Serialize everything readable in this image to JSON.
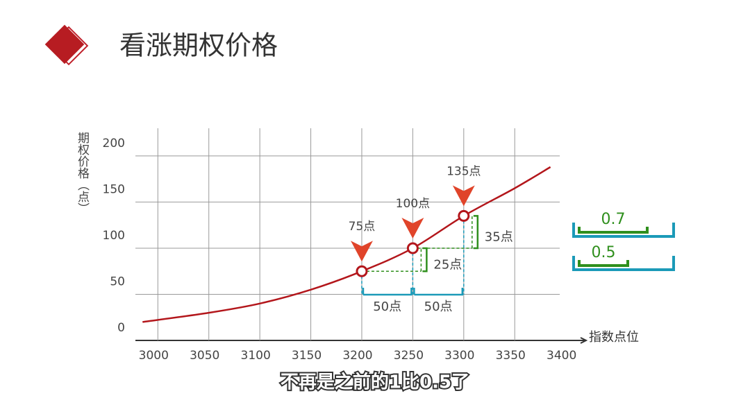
{
  "header": {
    "title": "看涨期权价格"
  },
  "caption": "不再是之前的1比0.5了",
  "chart_data": {
    "type": "line",
    "y_label": "期权价格（点）",
    "x_label": "指数点位",
    "x": [
      2985,
      3050,
      3100,
      3150,
      3200,
      3250,
      3300,
      3350,
      3385
    ],
    "values": [
      20,
      30,
      40,
      55,
      75,
      100,
      135,
      165,
      188
    ],
    "color": "#b3161b",
    "xlim": [
      2978,
      3420
    ],
    "xticks": [
      3000,
      3050,
      3100,
      3150,
      3200,
      3250,
      3300,
      3350,
      3400
    ],
    "ylim": [
      0,
      230
    ],
    "yticks": [
      0,
      50,
      100,
      150,
      200
    ],
    "grid": true,
    "points": [
      {
        "x": 3200,
        "y": 75,
        "label": "75点"
      },
      {
        "x": 3250,
        "y": 100,
        "label": "100点"
      },
      {
        "x": 3300,
        "y": 135,
        "label": "135点"
      }
    ],
    "x_steps": [
      {
        "from": 3200,
        "to": 3250,
        "label": "50点"
      },
      {
        "from": 3250,
        "to": 3300,
        "label": "50点"
      }
    ],
    "y_steps": [
      {
        "from": 75,
        "to": 100,
        "label": "25点"
      },
      {
        "from": 100,
        "to": 135,
        "label": "35点"
      }
    ],
    "ratios": [
      0.7,
      0.5
    ]
  }
}
